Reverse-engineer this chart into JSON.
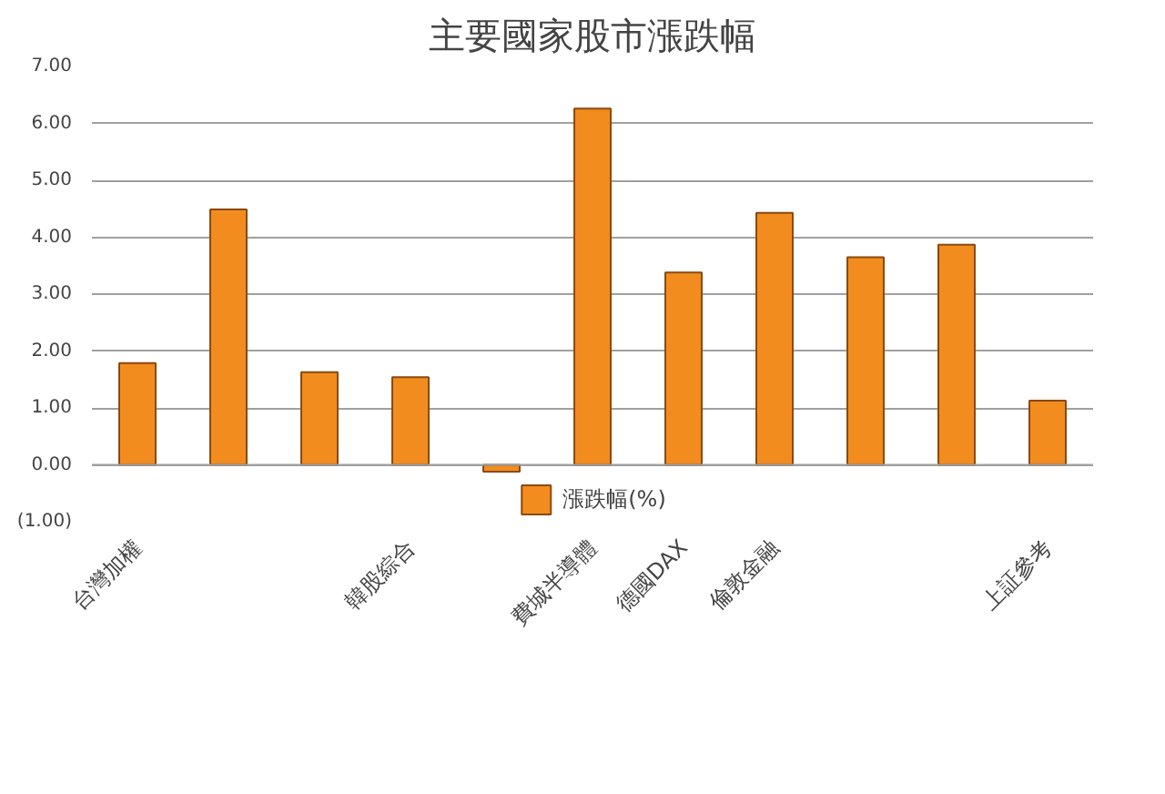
{
  "chart_data": {
    "type": "bar",
    "title": "主要國家股市漲跌幅",
    "categories": [
      "台灣加權",
      null,
      null,
      "韓股綜合",
      null,
      "費城半導體",
      "德國DAX",
      "倫敦金融",
      null,
      null,
      "上証參考"
    ],
    "series": [
      {
        "name": "漲跌幅(%)",
        "color": "#f28c1e",
        "values": [
          1.79,
          4.49,
          1.63,
          1.54,
          -0.12,
          6.26,
          3.38,
          4.43,
          3.65,
          3.87,
          1.13
        ]
      }
    ],
    "ylim": [
      -1,
      7
    ],
    "yticks": [
      {
        "value": -1,
        "label": "(1.00)"
      },
      {
        "value": 0,
        "label": "0.00"
      },
      {
        "value": 1,
        "label": "1.00"
      },
      {
        "value": 2,
        "label": "2.00"
      },
      {
        "value": 3,
        "label": "3.00"
      },
      {
        "value": 4,
        "label": "4.00"
      },
      {
        "value": 5,
        "label": "5.00"
      },
      {
        "value": 6,
        "label": "6.00"
      },
      {
        "value": 7,
        "label": "7.00"
      }
    ],
    "grid": "y",
    "legend": "bottom"
  }
}
